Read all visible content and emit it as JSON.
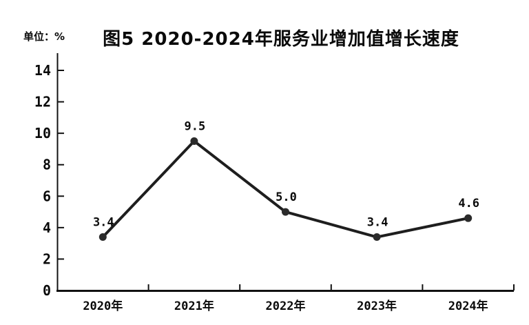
{
  "chart_data": {
    "type": "line",
    "title": "图5  2020-2024年服务业增加值增长速度",
    "unit_label": "单位：%",
    "categories": [
      "2020年",
      "2021年",
      "2022年",
      "2023年",
      "2024年"
    ],
    "values": [
      3.4,
      9.5,
      5.0,
      3.4,
      4.6
    ],
    "data_labels": [
      "3.4",
      "9.5",
      "5.0",
      "3.4",
      "4.6"
    ],
    "series_name": "服务业增加值增长速度",
    "xlabel": "",
    "ylabel": "单位：%",
    "ylim": [
      0,
      14
    ],
    "yticks": [
      0,
      2,
      4,
      6,
      8,
      10,
      12,
      14
    ],
    "grid": false,
    "legend": "none",
    "colors": {
      "line": "#1e1e1e",
      "marker": "#2b2b2b",
      "axis": "#111111",
      "text": "#0a0a0a",
      "background": "#ffffff"
    }
  }
}
